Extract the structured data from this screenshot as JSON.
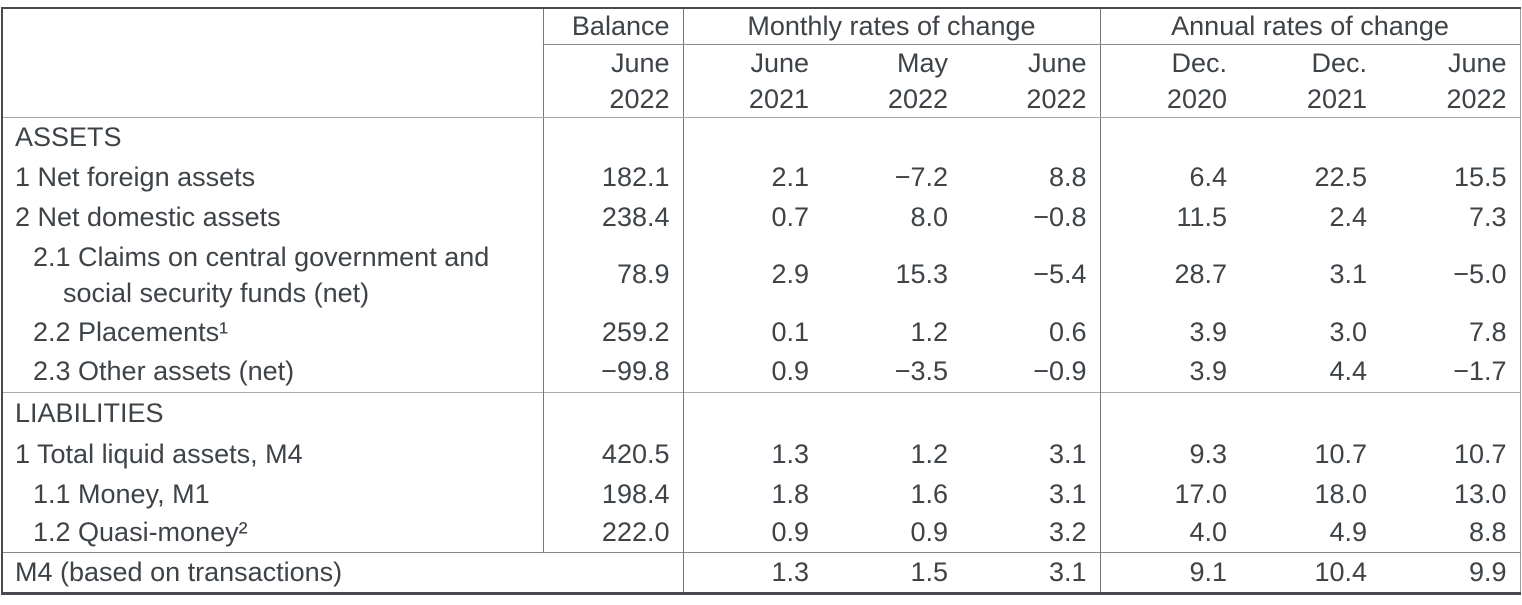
{
  "header": {
    "balance": "Balance",
    "monthly_group": "Monthly rates of change",
    "annual_group": "Annual rates of change",
    "subcols": [
      {
        "month": "June",
        "year": "2022"
      },
      {
        "month": "June",
        "year": "2021"
      },
      {
        "month": "May",
        "year": "2022"
      },
      {
        "month": "June",
        "year": "2022"
      },
      {
        "month": "Dec.",
        "year": "2020"
      },
      {
        "month": "Dec.",
        "year": "2021"
      },
      {
        "month": "June",
        "year": "2022"
      }
    ]
  },
  "rows": [
    {
      "label": "ASSETS"
    },
    {
      "label": "1 Net foreign assets",
      "values": [
        "182.1",
        "2.1",
        "−7.2",
        "8.8",
        "6.4",
        "22.5",
        "15.5"
      ]
    },
    {
      "label": "2 Net domestic assets",
      "values": [
        "238.4",
        "0.7",
        "8.0",
        "−0.8",
        "11.5",
        "2.4",
        "7.3"
      ]
    },
    {
      "label_line1": "2.1 Claims on central government and",
      "label_line2": "social security funds (net)",
      "values": [
        "78.9",
        "2.9",
        "15.3",
        "−5.4",
        "28.7",
        "3.1",
        "−5.0"
      ]
    },
    {
      "label": "2.2 Placements¹",
      "values": [
        "259.2",
        "0.1",
        "1.2",
        "0.6",
        "3.9",
        "3.0",
        "7.8"
      ]
    },
    {
      "label": "2.3 Other assets (net)",
      "values": [
        "−99.8",
        "0.9",
        "−3.5",
        "−0.9",
        "3.9",
        "4.4",
        "−1.7"
      ]
    },
    {
      "label": "LIABILITIES"
    },
    {
      "label": "1 Total liquid assets, M4",
      "values": [
        "420.5",
        "1.3",
        "1.2",
        "3.1",
        "9.3",
        "10.7",
        "10.7"
      ]
    },
    {
      "label": "1.1 Money, M1",
      "values": [
        "198.4",
        "1.8",
        "1.6",
        "3.1",
        "17.0",
        "18.0",
        "13.0"
      ]
    },
    {
      "label": "1.2 Quasi-money²",
      "values": [
        "222.0",
        "0.9",
        "0.9",
        "3.2",
        "4.0",
        "4.9",
        "8.8"
      ]
    }
  ],
  "footer": {
    "label": "M4 (based on transactions)",
    "values": [
      "1.3",
      "1.5",
      "3.1",
      "9.1",
      "10.4",
      "9.9"
    ]
  }
}
